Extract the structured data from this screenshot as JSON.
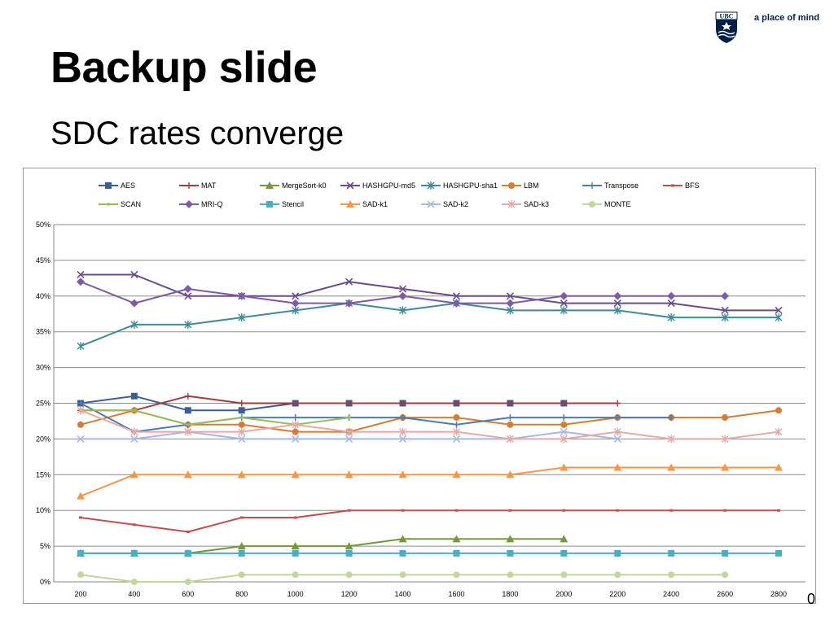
{
  "slide": {
    "title": "Backup slide",
    "subtitle": "SDC rates converge",
    "tagline": "a place of mind",
    "logo_text": "UBC",
    "page_number": "0"
  },
  "chart_data": {
    "type": "line",
    "x": [
      "200",
      "400",
      "600",
      "800",
      "1000",
      "1200",
      "1400",
      "1600",
      "1800",
      "2000",
      "2200",
      "2400",
      "2600",
      "2800"
    ],
    "y_ticks": [
      "0%",
      "5%",
      "10%",
      "15%",
      "20%",
      "25%",
      "30%",
      "35%",
      "40%",
      "45%",
      "50%"
    ],
    "ylim": [
      0,
      50
    ],
    "grid": true,
    "legend_position": "top",
    "series": [
      {
        "name": "AES",
        "color": "#3B5F95",
        "marker": "square",
        "values": [
          25,
          26,
          24,
          24,
          25,
          25,
          25,
          25,
          25,
          25,
          null,
          null,
          null,
          null
        ]
      },
      {
        "name": "MAT",
        "color": "#A23B3A",
        "marker": "plus",
        "values": [
          24,
          24,
          26,
          25,
          25,
          25,
          25,
          25,
          25,
          25,
          25,
          null,
          null,
          null
        ]
      },
      {
        "name": "MergeSort-k0",
        "color": "#78963D",
        "marker": "triangle",
        "values": [
          4,
          4,
          4,
          5,
          5,
          5,
          6,
          6,
          6,
          6,
          null,
          null,
          null,
          null
        ]
      },
      {
        "name": "HASHGPU-md5",
        "color": "#6A4C8C",
        "marker": "x",
        "values": [
          43,
          43,
          40,
          40,
          40,
          42,
          41,
          40,
          40,
          39,
          39,
          39,
          38,
          38
        ]
      },
      {
        "name": "HASHGPU-sha1",
        "color": "#3C8B98",
        "marker": "star",
        "values": [
          33,
          36,
          36,
          37,
          38,
          39,
          38,
          39,
          38,
          38,
          38,
          37,
          37,
          37
        ]
      },
      {
        "name": "LBM",
        "color": "#D87C33",
        "marker": "circle",
        "values": [
          22,
          24,
          22,
          22,
          21,
          21,
          23,
          23,
          22,
          22,
          23,
          23,
          23,
          24
        ]
      },
      {
        "name": "Transpose",
        "color": "#4A7BB6",
        "marker": "plus",
        "values": [
          25,
          21,
          22,
          23,
          23,
          23,
          23,
          22,
          23,
          23,
          23,
          23,
          null,
          null
        ]
      },
      {
        "name": "BFS",
        "color": "#C0504D",
        "marker": "dash",
        "values": [
          9,
          8,
          7,
          9,
          9,
          10,
          10,
          10,
          10,
          10,
          10,
          10,
          10,
          10
        ]
      },
      {
        "name": "SCAN",
        "color": "#9BBB59",
        "marker": "dash",
        "values": [
          24,
          24,
          22,
          23,
          22,
          23,
          null,
          null,
          null,
          null,
          null,
          null,
          null,
          null
        ]
      },
      {
        "name": "MRI-Q",
        "color": "#7D5BA6",
        "marker": "diamond",
        "values": [
          42,
          39,
          41,
          40,
          39,
          39,
          40,
          39,
          39,
          40,
          40,
          40,
          40,
          null
        ]
      },
      {
        "name": "Stencil",
        "color": "#4BACC6",
        "marker": "square",
        "values": [
          4,
          4,
          4,
          4,
          4,
          4,
          4,
          4,
          4,
          4,
          4,
          4,
          4,
          4
        ]
      },
      {
        "name": "SAD-k1",
        "color": "#F79646",
        "marker": "triangle",
        "values": [
          12,
          15,
          15,
          15,
          15,
          15,
          15,
          15,
          15,
          16,
          16,
          16,
          16,
          16
        ]
      },
      {
        "name": "SAD-k2",
        "color": "#A7B9E3",
        "marker": "x",
        "values": [
          20,
          20,
          21,
          20,
          20,
          20,
          20,
          20,
          20,
          21,
          20,
          null,
          null,
          null
        ]
      },
      {
        "name": "SAD-k3",
        "color": "#E6A9A7",
        "marker": "star",
        "values": [
          24,
          21,
          21,
          21,
          22,
          21,
          21,
          21,
          20,
          20,
          21,
          20,
          20,
          21
        ]
      },
      {
        "name": "MONTE",
        "color": "#C4D79B",
        "marker": "circle",
        "values": [
          1,
          0,
          0,
          1,
          1,
          1,
          1,
          1,
          1,
          1,
          1,
          1,
          1,
          null
        ]
      }
    ]
  }
}
